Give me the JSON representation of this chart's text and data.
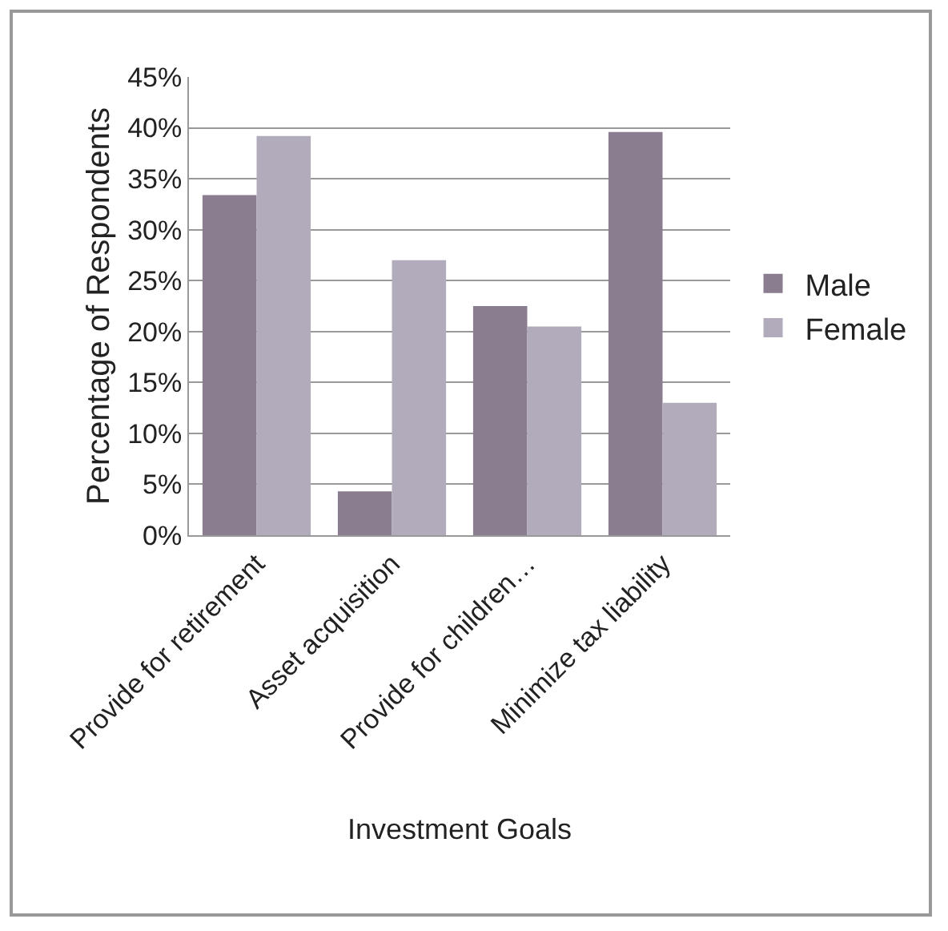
{
  "chart_data": {
    "type": "bar",
    "xlabel": "Investment Goals",
    "ylabel": "Percentage of Respondents",
    "categories": [
      "Provide for retirement",
      "Asset acquisition",
      "Provide for children…",
      "Minimize tax liability"
    ],
    "series": [
      {
        "name": "Male",
        "color": "#8a7d8f",
        "values": [
          33.4,
          4.3,
          22.5,
          39.6
        ]
      },
      {
        "name": "Female",
        "color": "#b2abbb",
        "values": [
          39.2,
          27.0,
          20.5,
          13.0
        ]
      }
    ],
    "ylim": [
      0,
      45
    ],
    "yticks": [
      {
        "value": 0,
        "label": "0%"
      },
      {
        "value": 5,
        "label": "5%"
      },
      {
        "value": 10,
        "label": "10%"
      },
      {
        "value": 15,
        "label": "15%"
      },
      {
        "value": 20,
        "label": "20%"
      },
      {
        "value": 25,
        "label": "25%"
      },
      {
        "value": 30,
        "label": "30%"
      },
      {
        "value": 35,
        "label": "35%"
      },
      {
        "value": 40,
        "label": "40%"
      },
      {
        "value": 45,
        "label": "45%"
      }
    ],
    "grid": "y",
    "legend": "right"
  }
}
